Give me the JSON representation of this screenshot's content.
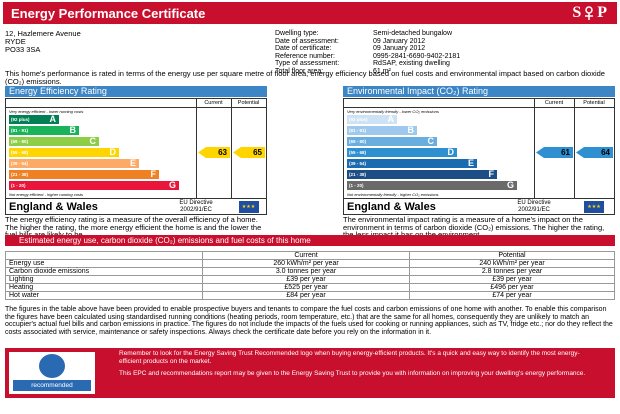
{
  "header": {
    "title": "Energy Performance Certificate",
    "logo": {
      "left": "S",
      "right": "P"
    }
  },
  "address": [
    "12, Hazlemere Avenue",
    "RYDE",
    "PO33 3SA"
  ],
  "details": [
    {
      "label": "Dwelling type:",
      "value": "Semi-detached bungalow"
    },
    {
      "label": "Date of assessment:",
      "value": "09 January 2012"
    },
    {
      "label": "Date of certificate:",
      "value": "09 January 2012"
    },
    {
      "label": "Reference number:",
      "value": "0995-2841-6690-9402-2181"
    },
    {
      "label": "Type of assessment:",
      "value": "RdSAP, existing dwelling"
    },
    {
      "label": "Total floor area:",
      "value": "61 m²"
    }
  ],
  "intro": "This home's performance is rated in terms of the energy use per square metre of floor area, energy efficiency based on fuel costs and environmental impact based on carbon dioxide (CO₂) emissions.",
  "ratings": [
    {
      "title": "Energy Efficiency Rating",
      "columns": [
        "Current",
        "Potential"
      ],
      "top_note": "Very energy efficient - lower running costs",
      "bands": [
        {
          "range": "(92 plus)",
          "letter": "A"
        },
        {
          "range": "(81 - 91)",
          "letter": "B"
        },
        {
          "range": "(69 - 80)",
          "letter": "C"
        },
        {
          "range": "(55 - 68)",
          "letter": "D"
        },
        {
          "range": "(39 - 54)",
          "letter": "E"
        },
        {
          "range": "(21 - 38)",
          "letter": "F"
        },
        {
          "range": "(1 - 20)",
          "letter": "G"
        }
      ],
      "bottom_note": "Not energy efficient - higher running costs",
      "current": 63,
      "potential": 65,
      "region": "England & Wales",
      "directive": [
        "EU Directive",
        "2002/91/EC"
      ],
      "caption": "The energy efficiency rating is a measure of the overall efficiency of a home. The higher the rating, the more energy efficient the home is and the lower the fuel bills are likely to be."
    },
    {
      "title": "Environmental Impact (CO₂) Rating",
      "columns": [
        "Current",
        "Potential"
      ],
      "top_note": "Very environmentally friendly - lower CO₂ emissions",
      "bands": [
        {
          "range": "(92 plus)",
          "letter": "A"
        },
        {
          "range": "(81 - 91)",
          "letter": "B"
        },
        {
          "range": "(69 - 80)",
          "letter": "C"
        },
        {
          "range": "(55 - 68)",
          "letter": "D"
        },
        {
          "range": "(39 - 54)",
          "letter": "E"
        },
        {
          "range": "(21 - 38)",
          "letter": "F"
        },
        {
          "range": "(1 - 20)",
          "letter": "G"
        }
      ],
      "bottom_note": "Not environmentally friendly - higher CO₂ emissions",
      "current": 61,
      "potential": 64,
      "region": "England & Wales",
      "directive": [
        "EU Directive",
        "2002/91/EC"
      ],
      "caption": "The environmental impact rating is a measure of a home's impact on the environment in terms of carbon dioxide (CO₂) emissions. The higher the rating, the less impact it has on the environment."
    }
  ],
  "estimates": {
    "title": "Estimated energy use, carbon dioxide (CO₂) emissions and fuel costs of this home",
    "columns": [
      "Current",
      "Potential"
    ],
    "rows": [
      [
        "Energy use",
        "260 kWh/m² per year",
        "240 kWh/m² per year"
      ],
      [
        "Carbon dioxide emissions",
        "3.0 tonnes per year",
        "2.8 tonnes per year"
      ],
      [
        "Lighting",
        "£39 per year",
        "£39 per year"
      ],
      [
        "Heating",
        "£525 per year",
        "£496 per year"
      ],
      [
        "Hot water",
        "£84 per year",
        "£74 per year"
      ]
    ]
  },
  "note": "The figures in the table above have been provided to enable prospective buyers and tenants to compare the fuel costs and carbon emissions of one home with another. To enable this comparison the figures have been calculated using standardised running conditions (heating periods, room temperature, etc.) that are the same for all homes, consequently they are unlikely to match an occupier's actual fuel bills and carbon emissions in practice. The figures do not include the impacts of the fuels used for cooking or running appliances, such as TV, fridge etc.; nor do they reflect the costs associated with service, maintenance or safety inspections. Always check the certificate date before you rely on the information in it.",
  "footer": {
    "logo_text": "recommended",
    "paragraphs": [
      "Remember to look for the Energy Saving Trust Recommended logo when buying energy-efficient products. It's a quick and easy way to identify the most energy-efficient products on the market.",
      "This EPC and recommendations report may be given to the Energy Saving Trust to provide you with information on improving your dwelling's energy performance."
    ]
  }
}
